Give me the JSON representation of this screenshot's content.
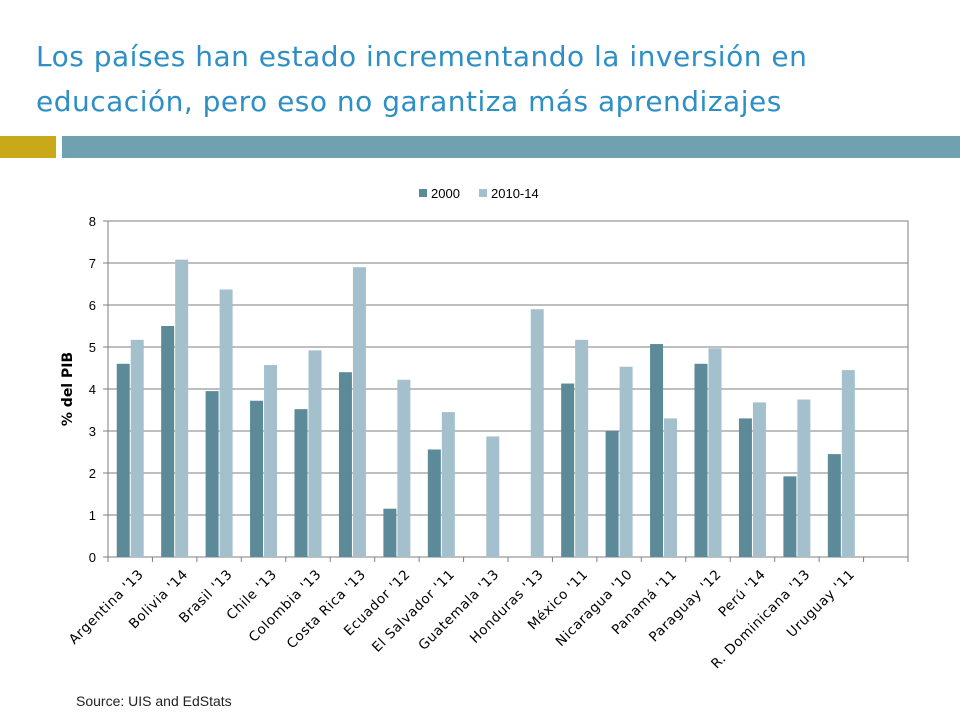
{
  "title": "Los países han estado incrementando la inversión en educación, pero eso no garantiza más aprendizajes",
  "source": "Source: UIS and EdStats",
  "colors": {
    "title": "#2e8fc5",
    "accent": "#c9a819",
    "rule": "#6fa1b0"
  },
  "chart_data": {
    "type": "bar",
    "categories": [
      "Argentina '13",
      "Bolivia '14",
      "Brasil '13",
      "Chile '13",
      "Colombia '13",
      "Costa Rica '13",
      "Ecuador '12",
      "El Salvador '11",
      "Guatemala '13",
      "Honduras '13",
      "México '11",
      "Nicaragua '10",
      "Panamá '11",
      "Paraguay '12",
      "Perú '14",
      "R. Dominicana '13",
      "Uruguay '11"
    ],
    "series": [
      {
        "name": "2000",
        "color": "#5d8a98",
        "values": [
          4.6,
          5.5,
          3.95,
          3.72,
          3.52,
          4.4,
          1.15,
          2.56,
          null,
          null,
          4.13,
          3.0,
          5.07,
          4.6,
          3.3,
          1.92,
          2.45
        ]
      },
      {
        "name": "2010-14",
        "color": "#a4c0cc",
        "values": [
          5.17,
          7.08,
          6.37,
          4.57,
          4.92,
          6.9,
          4.22,
          3.45,
          2.87,
          5.9,
          5.17,
          4.53,
          3.3,
          4.97,
          3.68,
          3.75,
          4.45
        ]
      }
    ],
    "ylabel": "% del PIB",
    "xlabel": "",
    "ylim": [
      0,
      8
    ],
    "yticks": [
      0,
      1,
      2,
      3,
      4,
      5,
      6,
      7,
      8
    ],
    "grid": true,
    "legend_position": "top"
  }
}
